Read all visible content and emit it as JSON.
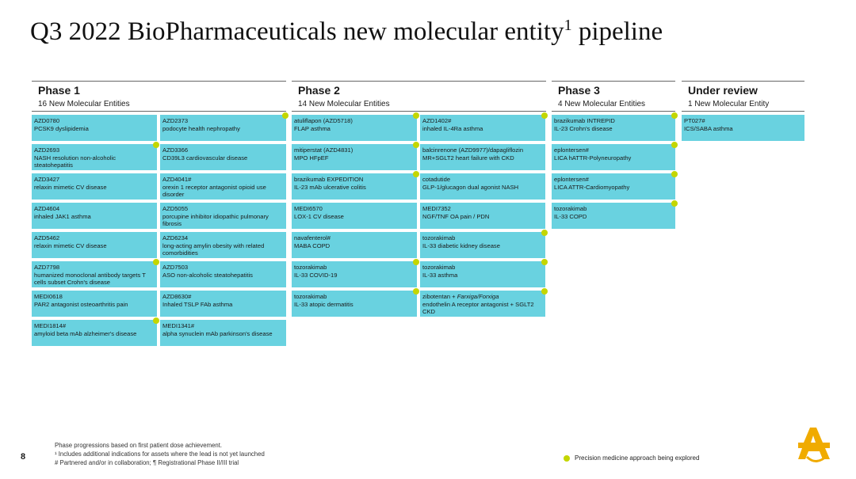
{
  "title": "Q3 2022 BioPharmaceuticals new molecular entity",
  "title_sup": "1",
  "title_tail": "pipeline",
  "phases": {
    "p1": {
      "name": "Phase 1",
      "count": "16 New Molecular Entities",
      "cards": [
        {
          "name": "AZD0780",
          "desc": "PCSK9 dyslipidemia",
          "dot": false
        },
        {
          "name": "AZD2373",
          "desc": "podocyte health nephropathy",
          "dot": true
        },
        {
          "name": "AZD2693",
          "desc": "NASH resolution non-alcoholic steatohepatitis",
          "dot": true
        },
        {
          "name": "AZD3366",
          "desc": "CD39L3 cardiovascular disease",
          "dot": false
        },
        {
          "name": "AZD3427",
          "desc": "relaxin mimetic CV disease",
          "dot": false
        },
        {
          "name": "AZD4041#",
          "desc": "orexin 1 receptor antagonist opioid use disorder",
          "dot": false
        },
        {
          "name": "AZD4604",
          "desc": "inhaled JAK1 asthma",
          "dot": false
        },
        {
          "name": "AZD5055",
          "desc": "porcupine inhibitor idiopathic pulmonary fibrosis",
          "dot": false
        },
        {
          "name": "AZD5462",
          "desc": "relaxin mimetic CV disease",
          "dot": false
        },
        {
          "name": "AZD6234",
          "desc": "long-acting amylin obesity with related comorbidities",
          "dot": false
        },
        {
          "name": "AZD7798",
          "desc": "humanized monoclonal antibody targets T cells subset Crohn's disease",
          "dot": true
        },
        {
          "name": "AZD7503",
          "desc": "ASO non-alcoholic steatohepatitis",
          "dot": false
        },
        {
          "name": "MEDI0618",
          "desc": "PAR2 antagonist osteoarthritis pain",
          "dot": false
        },
        {
          "name": "AZD8630#",
          "desc": "Inhaled TSLP FAb asthma",
          "dot": false
        },
        {
          "name": "MEDI1814#",
          "desc": "amyloid beta mAb alzheimer's disease",
          "dot": true
        },
        {
          "name": "MEDI1341#",
          "desc": "alpha synuclein mAb parkinson's disease",
          "dot": false
        }
      ]
    },
    "p2": {
      "name": "Phase 2",
      "count": "14 New Molecular Entities",
      "cards": [
        {
          "name": "atuliflapon (AZD5718)",
          "desc": "FLAP asthma",
          "dot": true
        },
        {
          "name": "AZD1402#",
          "desc": "inhaled IL-4Ra asthma",
          "dot": true
        },
        {
          "name": "mitiperstat (AZD4831)",
          "desc": "MPO HFpEF",
          "dot": true
        },
        {
          "name": "balcinrenone (AZD9977)/dapagliflozin",
          "desc": "MR+SGLT2 heart failure with CKD",
          "dot": false
        },
        {
          "name": "brazikumab EXPEDITION",
          "desc": "IL-23 mAb ulcerative colitis",
          "dot": true
        },
        {
          "name": "cotadutide",
          "desc": "GLP-1/glucagon dual agonist NASH",
          "dot": false
        },
        {
          "name": "MEDI6570",
          "desc": "LOX-1 CV disease",
          "dot": false
        },
        {
          "name": "MEDI7352",
          "desc": "NGF/TNF OA pain / PDN",
          "dot": false
        },
        {
          "name": "navafenterol#",
          "desc": "MABA COPD",
          "dot": false
        },
        {
          "name": "tozorakimab",
          "desc": "IL-33 diabetic kidney disease",
          "dot": true
        },
        {
          "name": "tozorakimab",
          "desc": "IL-33 COVID-19",
          "dot": true
        },
        {
          "name": "tozorakimab",
          "desc": "IL-33 asthma",
          "dot": true
        },
        {
          "name": "tozorakimab",
          "desc": "IL-33 atopic dermatitis",
          "dot": true
        },
        {
          "name": "zibotentan + Farxiga/Forxiga",
          "name_plain": "zibotentan + ",
          "name_italic": "Farxiga/Forxiga",
          "desc": "endothelin A receptor antagonist + SGLT2 CKD",
          "dot": true
        }
      ]
    },
    "p3": {
      "name": "Phase 3",
      "count": "4 New Molecular Entities",
      "cards": [
        {
          "name": "brazikumab INTREPID",
          "desc": "IL-23 Crohn's disease",
          "dot": true
        },
        {
          "name": "eplontersen#",
          "desc": "LICA hATTR-Polyneuropathy",
          "dot": true
        },
        {
          "name": "eplontersen#",
          "desc": "LICA ATTR-Cardiomyopathy",
          "dot": true
        },
        {
          "name": "tozorakimab",
          "desc": "IL-33 COPD",
          "dot": true
        }
      ]
    },
    "ur": {
      "name": "Under review",
      "count": "1 New Molecular Entity",
      "cards": [
        {
          "name": "PT027#",
          "desc": "ICS/SABA asthma",
          "dot": false
        }
      ]
    }
  },
  "page_number": "8",
  "footnotes": {
    "line1": "Phase progressions based on first patient dose achievement.",
    "line2": "¹ Includes additional indications for assets where the lead is not yet launched",
    "line3": "# Partnered and/or in collaboration; ¶ Registrational Phase II/III trial"
  },
  "legend_text": "Precision medicine approach being explored",
  "colors": {
    "card": "#69d2e0",
    "dot": "#c4d600",
    "logo": "#f0ab00"
  }
}
